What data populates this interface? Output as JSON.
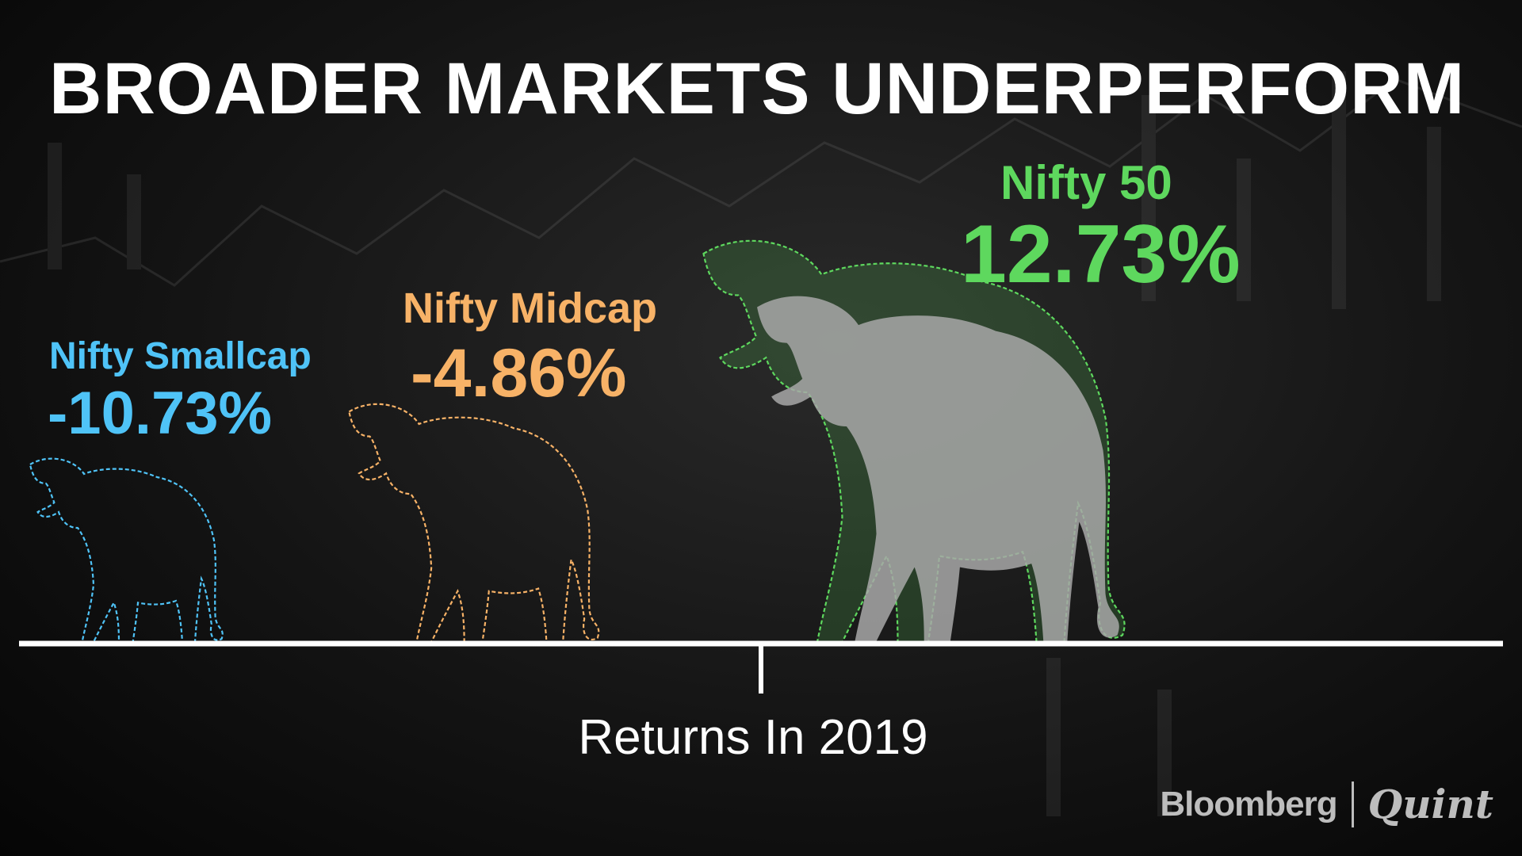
{
  "title": "BROADER MARKETS UNDERPERFORM",
  "axis_label": "Returns In 2019",
  "brand": {
    "left": "Bloomberg",
    "right": "Quint"
  },
  "colors": {
    "smallcap": "#4fc3f7",
    "midcap": "#f7b267",
    "nifty50": "#5ed85e",
    "axis": "#ffffff"
  },
  "chart_data": {
    "type": "bar",
    "title": "BROADER MARKETS UNDERPERFORM",
    "xlabel": "Returns In 2019",
    "ylabel": "",
    "categories": [
      "Nifty Smallcap",
      "Nifty Midcap",
      "Nifty 50"
    ],
    "values": [
      -10.73,
      -4.86,
      12.73
    ],
    "value_labels": [
      "-10.73%",
      "-4.86%",
      "12.73%"
    ]
  }
}
